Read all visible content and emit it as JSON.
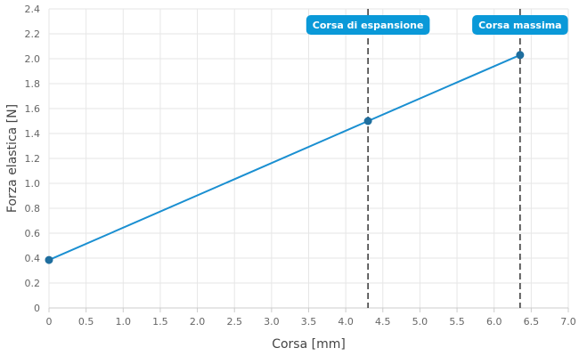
{
  "chart_data": {
    "type": "line",
    "xlabel": "Corsa [mm]",
    "ylabel": "Forza elastica [N]",
    "xlim": [
      0,
      7
    ],
    "ylim": [
      0,
      2.4
    ],
    "xticks": [
      "0",
      "0.5",
      "1.0",
      "1.5",
      "2.0",
      "2.5",
      "3.0",
      "3.5",
      "4.0",
      "4.5",
      "5.0",
      "5.5",
      "6.0",
      "6.5",
      "7.0"
    ],
    "yticks": [
      "0",
      "0.2",
      "0.4",
      "0.6",
      "0.8",
      "1.0",
      "1.2",
      "1.4",
      "1.6",
      "1.8",
      "2.0",
      "2.2",
      "2.4"
    ],
    "grid": true,
    "series": [
      {
        "color": "#1a8fd1",
        "points": [
          {
            "x": 0,
            "y": 0.385
          },
          {
            "x": 4.3,
            "y": 1.5
          },
          {
            "x": 6.35,
            "y": 2.03
          }
        ]
      }
    ],
    "annotations": [
      {
        "label": "Corsa di espansione",
        "x": 4.3
      },
      {
        "label": "Corsa massima",
        "x": 6.35
      }
    ],
    "colors": {
      "line": "#1a8fd1",
      "marker": "#1f6e9e",
      "annotation_bg": "#0a99d8",
      "annotation_line": "#333333",
      "grid": "#e6e6e6"
    }
  }
}
